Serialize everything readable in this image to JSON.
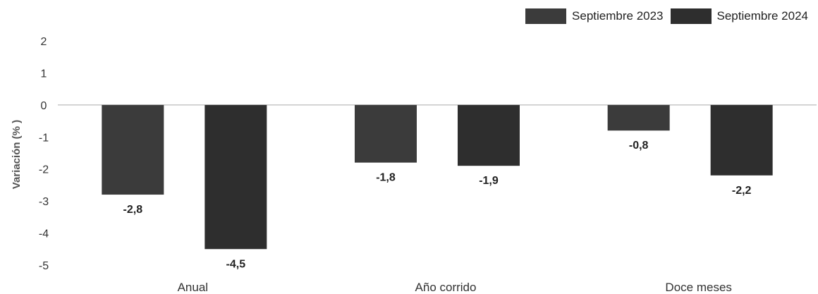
{
  "chart_data": {
    "type": "bar",
    "categories": [
      "Anual",
      "Año corrido",
      "Doce meses"
    ],
    "series": [
      {
        "name": "Septiembre 2023",
        "values": [
          -2.8,
          -1.8,
          -0.8
        ],
        "labels": [
          "-2,8",
          "-1,8",
          "-0,8"
        ],
        "color": "#3b3b3b"
      },
      {
        "name": "Septiembre 2024",
        "values": [
          -4.5,
          -1.9,
          -2.2
        ],
        "labels": [
          "-4,5",
          "-1,9",
          "-2,2"
        ],
        "color": "#2e2e2e"
      }
    ],
    "ylabel": "Variación (% )",
    "ylim": [
      -5,
      2
    ],
    "yticks": [
      "2",
      "1",
      "0",
      "-1",
      "-2",
      "-3",
      "-4",
      "-5"
    ],
    "ytick_values": [
      2,
      1,
      0,
      -1,
      -2,
      -3,
      -4,
      -5
    ],
    "grid": false,
    "legend_position": "top-right"
  }
}
